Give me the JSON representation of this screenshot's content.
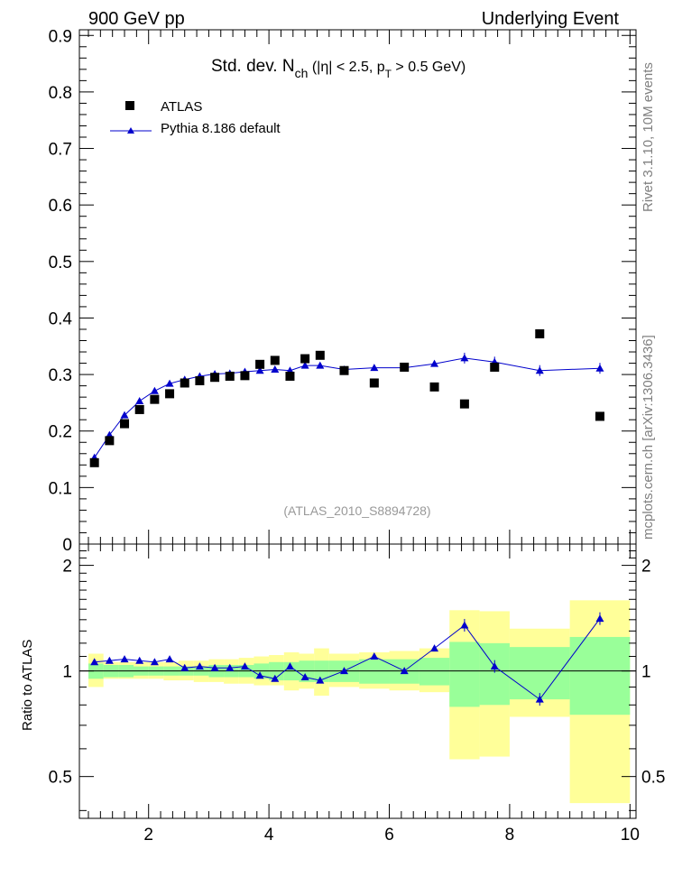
{
  "header": {
    "left": "900 GeV pp",
    "right": "Underlying Event"
  },
  "side_labels": {
    "rivet": "Rivet 3.1.10, 10M events",
    "mcplots": "mcplots.cern.ch [arXiv:1306.3436]"
  },
  "colors": {
    "data": "#000000",
    "mc": "#0000cc",
    "band_inner": "#99ff99",
    "band_outer": "#ffff99"
  },
  "chart_data": [
    {
      "type": "scatter",
      "title_main": "Std. dev. N",
      "title_sub": "ch",
      "title_rest": " (|η| < 2.5, p",
      "title_sub2": "T",
      "title_end": " > 0.5 GeV)",
      "annotation": "(ATLAS_2010_S8894728)",
      "xlim": [
        0.85,
        10.1
      ],
      "ylim": [
        0,
        0.91
      ],
      "yticks": [
        "0",
        "0.1",
        "0.2",
        "0.3",
        "0.4",
        "0.5",
        "0.6",
        "0.7",
        "0.8",
        "0.9"
      ],
      "legend_position": "top-left",
      "series": [
        {
          "name": "ATLAS",
          "marker": "square",
          "x": [
            1.1,
            1.35,
            1.6,
            1.85,
            2.1,
            2.35,
            2.6,
            2.85,
            3.1,
            3.35,
            3.6,
            3.85,
            4.1,
            4.35,
            4.6,
            4.85,
            5.25,
            5.75,
            6.25,
            6.75,
            7.25,
            7.75,
            8.5,
            9.5
          ],
          "y": [
            0.144,
            0.183,
            0.213,
            0.238,
            0.256,
            0.266,
            0.285,
            0.289,
            0.295,
            0.297,
            0.298,
            0.318,
            0.325,
            0.297,
            0.328,
            0.334,
            0.307,
            0.285,
            0.313,
            0.278,
            0.248,
            0.313,
            0.372,
            0.226
          ]
        },
        {
          "name": "Pythia 8.186 default",
          "marker": "triangle",
          "x": [
            1.1,
            1.35,
            1.6,
            1.85,
            2.1,
            2.35,
            2.6,
            2.85,
            3.1,
            3.35,
            3.6,
            3.85,
            4.1,
            4.35,
            4.6,
            4.85,
            5.25,
            5.75,
            6.25,
            6.75,
            7.25,
            7.75,
            8.5,
            9.5
          ],
          "y": [
            0.153,
            0.193,
            0.228,
            0.253,
            0.271,
            0.284,
            0.291,
            0.297,
            0.301,
            0.302,
            0.305,
            0.307,
            0.309,
            0.307,
            0.316,
            0.316,
            0.309,
            0.312,
            0.312,
            0.319,
            0.329,
            0.322,
            0.307,
            0.311
          ]
        }
      ]
    },
    {
      "type": "line",
      "ylabel": "Ratio to ATLAS",
      "xlim": [
        0.85,
        10.1
      ],
      "ylim": [
        0.38,
        2.3
      ],
      "xticks": [
        "2",
        "4",
        "6",
        "8",
        "10"
      ],
      "yticks": [
        "0.5",
        "1",
        "2"
      ],
      "series": [
        {
          "name": "Pythia 8.186 default",
          "x": [
            1.1,
            1.35,
            1.6,
            1.85,
            2.1,
            2.35,
            2.6,
            2.85,
            3.1,
            3.35,
            3.6,
            3.85,
            4.1,
            4.35,
            4.6,
            4.85,
            5.25,
            5.75,
            6.25,
            6.75,
            7.25,
            7.75,
            8.5,
            9.5
          ],
          "y": [
            1.06,
            1.07,
            1.08,
            1.07,
            1.06,
            1.08,
            1.02,
            1.03,
            1.02,
            1.02,
            1.03,
            0.97,
            0.95,
            1.03,
            0.96,
            0.94,
            1.0,
            1.1,
            1.0,
            1.16,
            1.35,
            1.03,
            0.83,
            1.41
          ]
        }
      ],
      "bands": {
        "x_edges": [
          1.0,
          1.25,
          1.5,
          1.75,
          2.0,
          2.25,
          2.5,
          2.75,
          3.0,
          3.25,
          3.5,
          3.75,
          4.0,
          4.25,
          4.5,
          4.75,
          5.0,
          5.5,
          6.0,
          6.5,
          7.0,
          7.5,
          8.0,
          9.0,
          10.0
        ],
        "inner_lo": [
          0.95,
          0.96,
          0.96,
          0.97,
          0.97,
          0.97,
          0.97,
          0.97,
          0.96,
          0.96,
          0.96,
          0.95,
          0.94,
          0.94,
          0.93,
          0.93,
          0.93,
          0.92,
          0.92,
          0.91,
          0.79,
          0.8,
          0.83,
          0.75
        ],
        "inner_hi": [
          1.05,
          1.04,
          1.04,
          1.03,
          1.03,
          1.03,
          1.03,
          1.03,
          1.04,
          1.04,
          1.04,
          1.05,
          1.06,
          1.06,
          1.07,
          1.07,
          1.07,
          1.08,
          1.08,
          1.09,
          1.21,
          1.2,
          1.17,
          1.25
        ],
        "outer_lo": [
          0.9,
          0.95,
          0.95,
          0.95,
          0.95,
          0.94,
          0.94,
          0.93,
          0.93,
          0.92,
          0.92,
          0.91,
          0.91,
          0.88,
          0.89,
          0.85,
          0.9,
          0.89,
          0.88,
          0.87,
          0.56,
          0.57,
          0.74,
          0.42
        ],
        "outer_hi": [
          1.12,
          1.06,
          1.06,
          1.06,
          1.06,
          1.06,
          1.07,
          1.07,
          1.08,
          1.08,
          1.09,
          1.1,
          1.11,
          1.13,
          1.12,
          1.16,
          1.12,
          1.13,
          1.14,
          1.16,
          1.49,
          1.48,
          1.32,
          1.59
        ]
      }
    }
  ]
}
